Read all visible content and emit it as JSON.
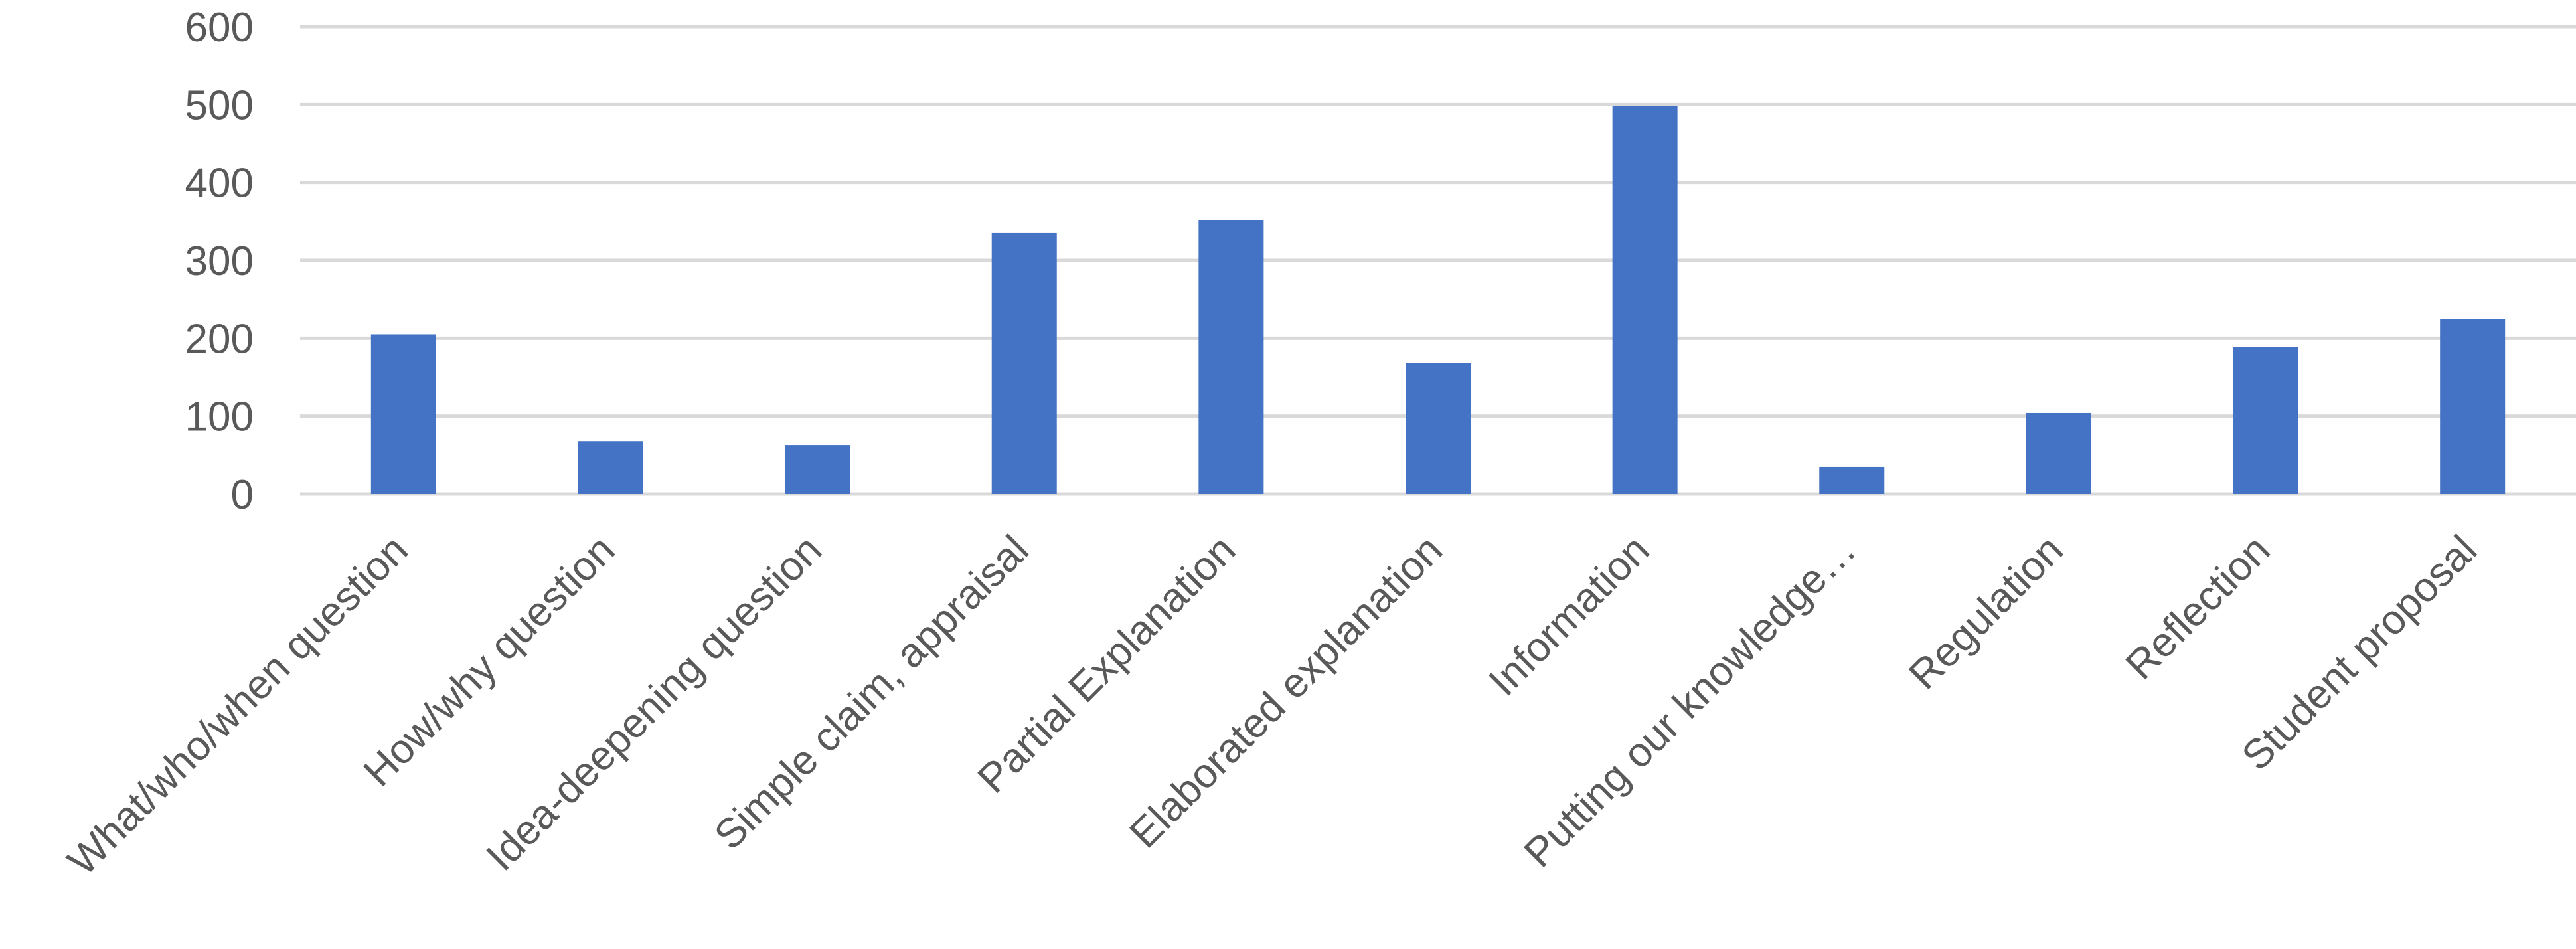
{
  "chart_data": {
    "type": "bar",
    "title": "",
    "xlabel": "",
    "ylabel": "",
    "ylim": [
      0,
      600
    ],
    "yticks": [
      0,
      100,
      200,
      300,
      400,
      500,
      600
    ],
    "grid": true,
    "legend": "none",
    "bar_color": "#4472c4",
    "categories": [
      "What/who/when question",
      "How/why question",
      "Idea-deepening question",
      "Simple claim, appraisal",
      "Partial Explanation",
      "Elaborated explanation",
      "Information",
      "Putting our knowledge…",
      "Regulation",
      "Reflection",
      "Student proposal"
    ],
    "values": [
      205,
      68,
      63,
      335,
      352,
      168,
      498,
      35,
      104,
      189,
      225
    ]
  }
}
